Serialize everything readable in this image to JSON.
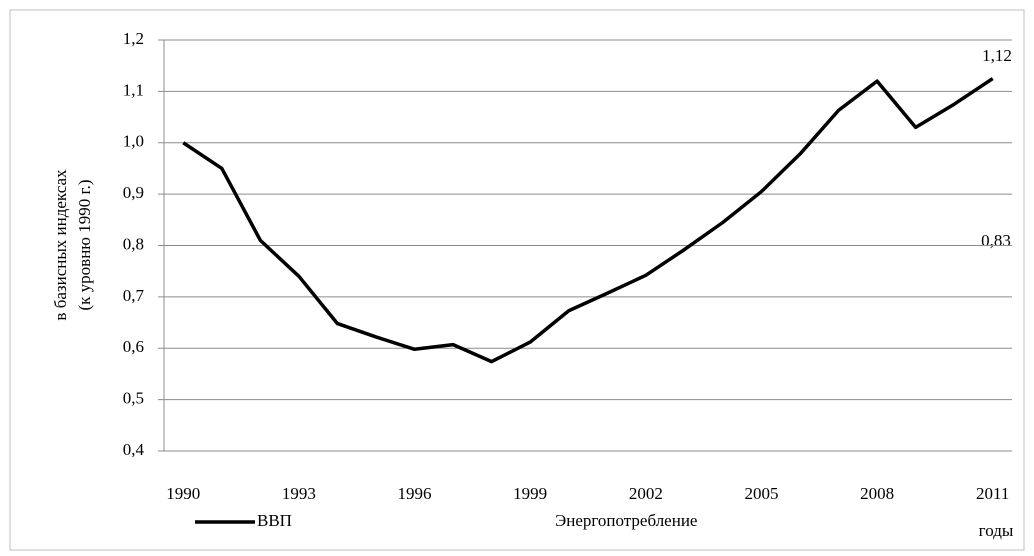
{
  "chart_data": {
    "type": "line",
    "y_label": [
      "в базисных индексах",
      "(к уровню 1990 г.)"
    ],
    "x_label": "годы",
    "categories": [
      "1990",
      null,
      null,
      "1993",
      null,
      null,
      "1996",
      null,
      null,
      "1999",
      null,
      null,
      "2002",
      null,
      null,
      "2005",
      null,
      null,
      "2008",
      null,
      null,
      "2011"
    ],
    "series": [
      {
        "name": "ВВП",
        "color": "#000000",
        "values": [
          1.0,
          0.95,
          0.81,
          0.74,
          0.648,
          0.622,
          0.598,
          0.607,
          0.574,
          0.612,
          0.673,
          0.707,
          0.742,
          0.792,
          0.845,
          0.905,
          0.978,
          1.063,
          1.12,
          1.03,
          1.075,
          1.125
        ]
      },
      {
        "name": "Энергопотребление",
        "values": [
          null,
          null,
          null,
          null,
          null,
          null,
          null,
          null,
          null,
          null,
          null,
          null,
          null,
          null,
          null,
          null,
          null,
          null,
          null,
          null,
          null,
          null
        ]
      }
    ],
    "ylim": [
      0.4,
      1.2
    ],
    "yticks": [
      {
        "value": 0.4,
        "label": "0,4"
      },
      {
        "value": 0.5,
        "label": "0,5"
      },
      {
        "value": 0.6,
        "label": "0,6"
      },
      {
        "value": 0.7,
        "label": "0,7"
      },
      {
        "value": 0.8,
        "label": "0,8"
      },
      {
        "value": 0.9,
        "label": "0,9"
      },
      {
        "value": 1.0,
        "label": "1,0"
      },
      {
        "value": 1.1,
        "label": "1,1"
      },
      {
        "value": 1.2,
        "label": "1,2"
      }
    ],
    "grid": true,
    "annotations": [
      {
        "text": "1,12"
      },
      {
        "text": "0,83"
      }
    ]
  }
}
